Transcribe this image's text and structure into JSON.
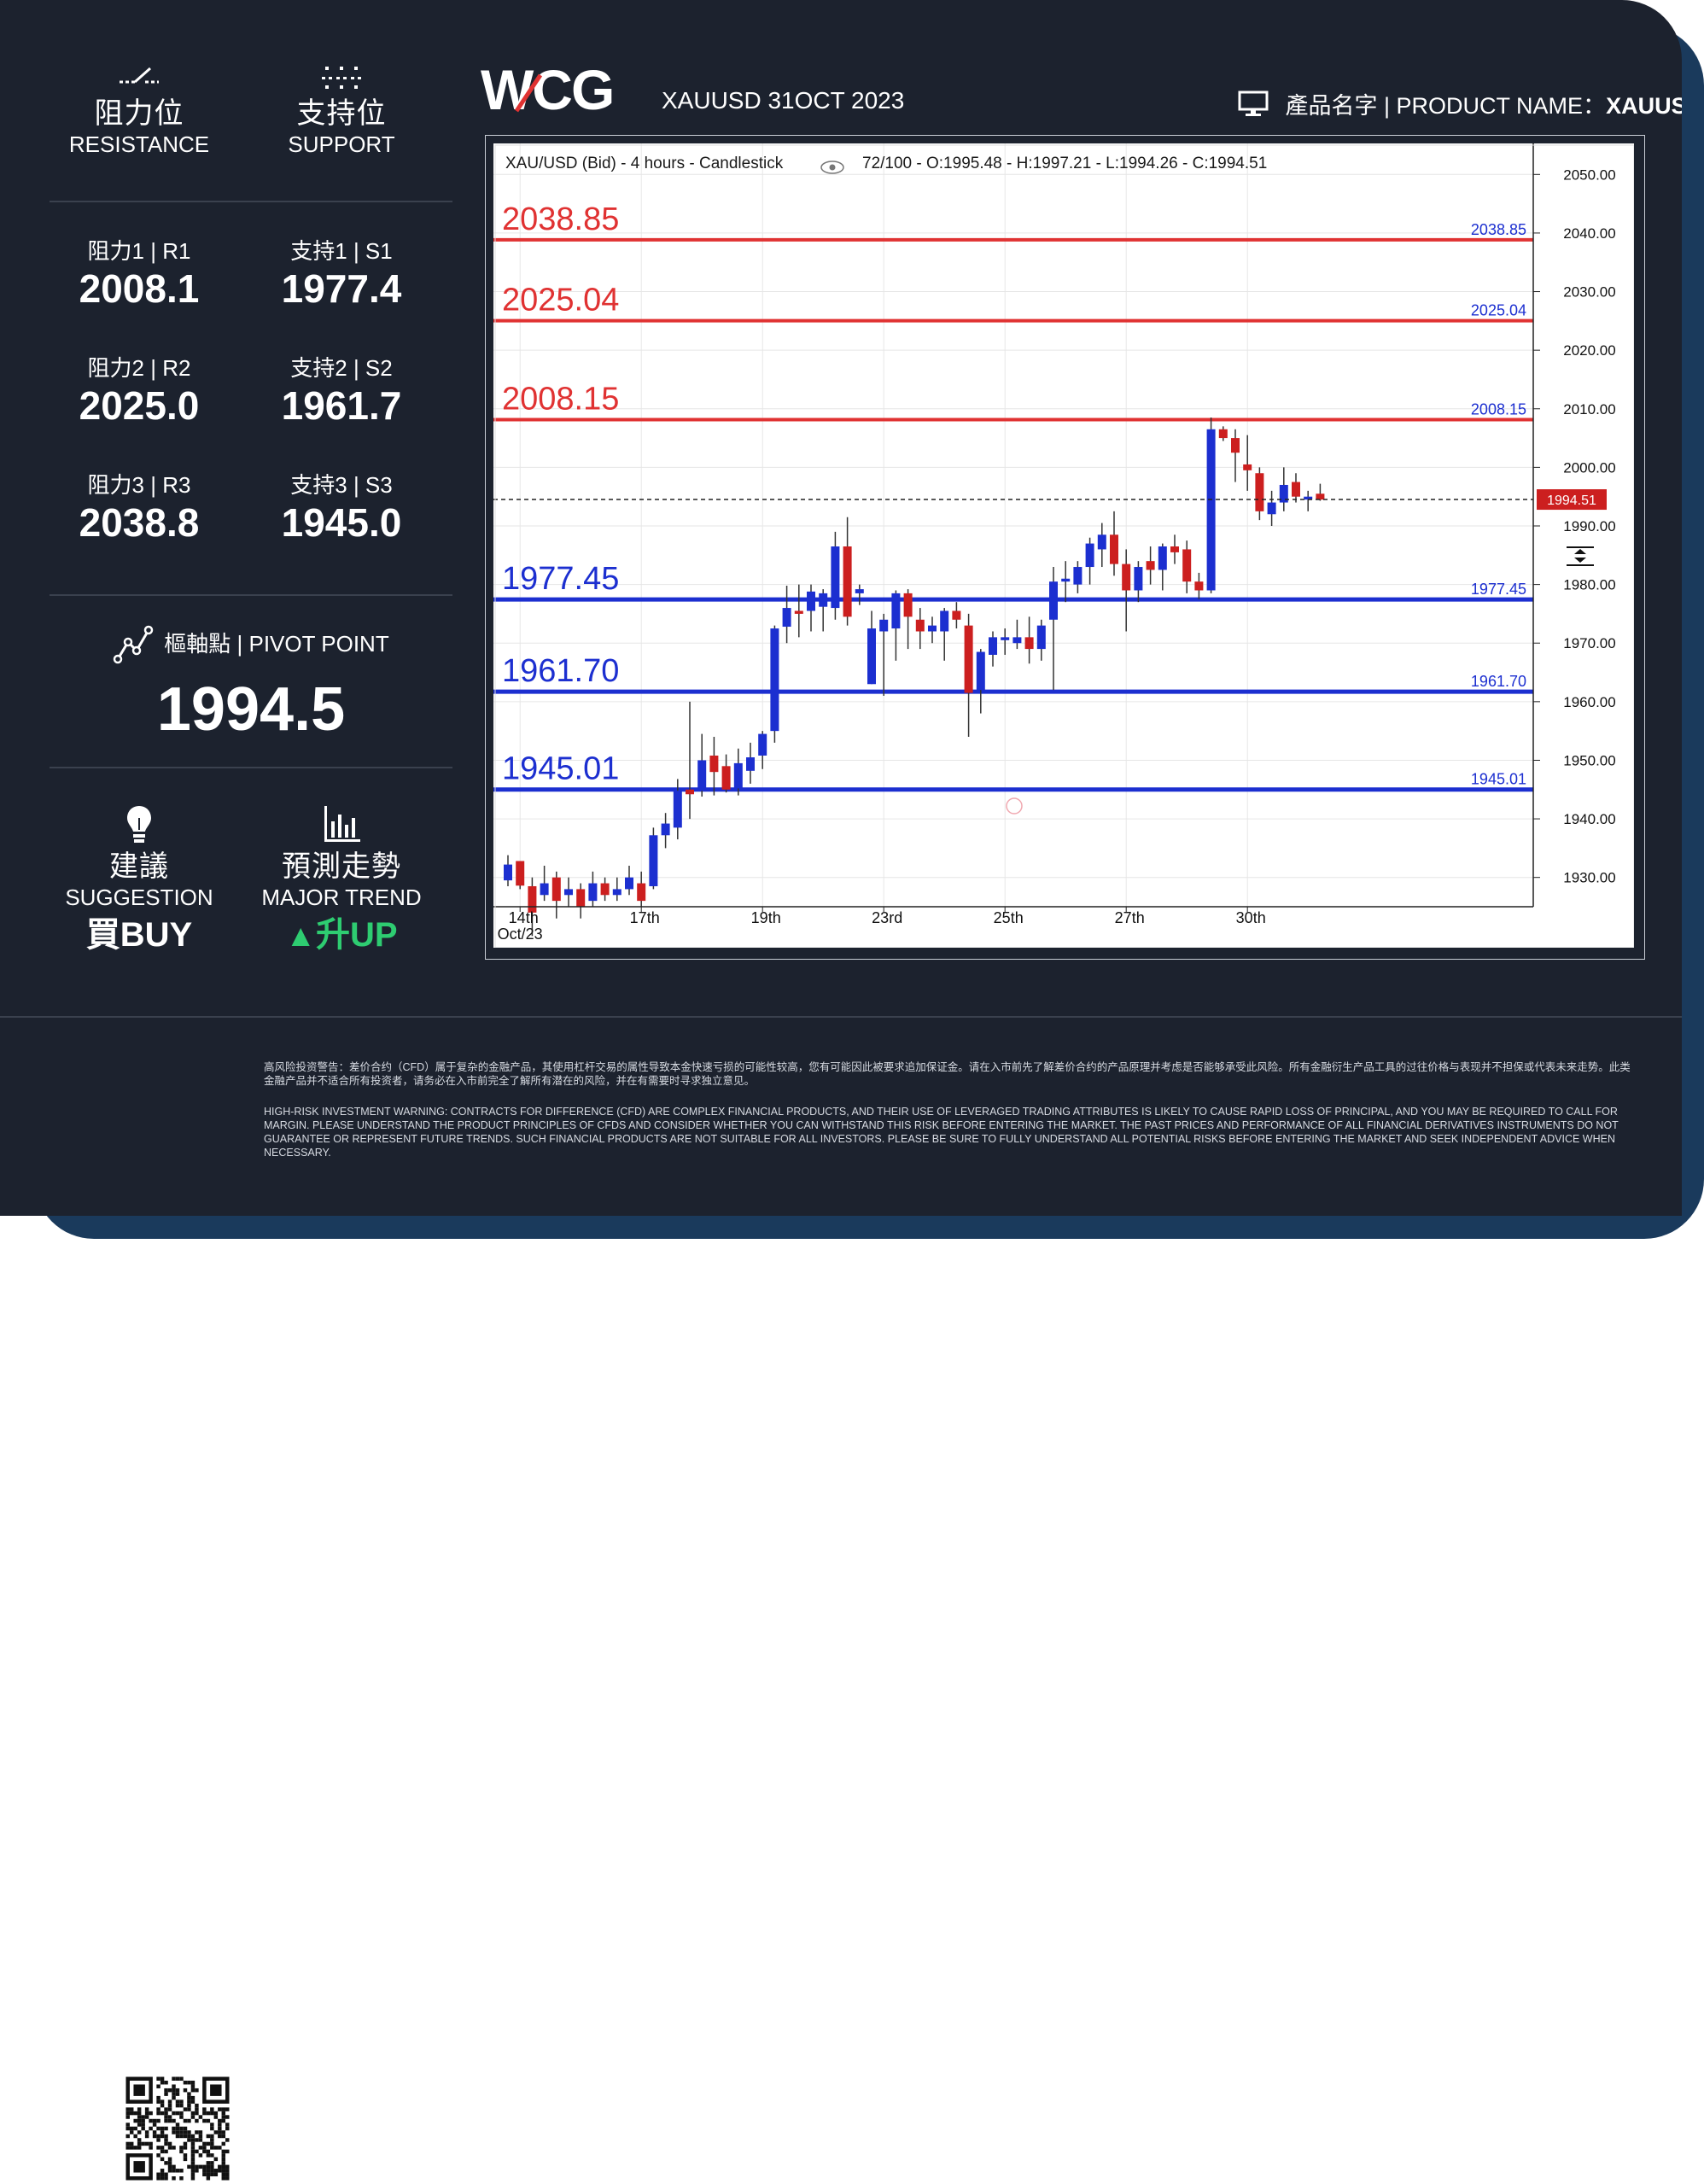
{
  "brand": {
    "logo_text": "WCG"
  },
  "header": {
    "title": "XAUUSD 31OCT 2023",
    "product_label": "產品名字 | PRODUCT NAME：",
    "product_value": "XAUUSD"
  },
  "resistance": {
    "cn": "阻力位",
    "en": "RESISTANCE"
  },
  "support": {
    "cn": "支持位",
    "en": "SUPPORT"
  },
  "levels": {
    "r1_label": "阻力1 | R1",
    "r1_value": "2008.1",
    "r2_label": "阻力2 | R2",
    "r2_value": "2025.0",
    "r3_label": "阻力3 | R3",
    "r3_value": "2038.8",
    "s1_label": "支持1 | S1",
    "s1_value": "1977.4",
    "s2_label": "支持2 | S2",
    "s2_value": "1961.7",
    "s3_label": "支持3 | S3",
    "s3_value": "1945.0"
  },
  "pivot": {
    "label": "樞軸點 | PIVOT POINT",
    "value": "1994.5"
  },
  "suggestion": {
    "cn": "建議",
    "en": "SUGGESTION",
    "value": "買BUY"
  },
  "trend": {
    "cn": "預測走勢",
    "en": "MAJOR TREND",
    "value": "升UP",
    "arrow": "▲"
  },
  "colors": {
    "background": "#1c222e",
    "accent_blue": "#13a8e0",
    "trend_green": "#2ecc71",
    "resistance_line": "#e03232",
    "support_line": "#1c2fd0",
    "candle_up": "#1c2fd0",
    "candle_down": "#cc1f1f"
  },
  "icons": {
    "resistance": "resistance-line-icon",
    "support": "support-dots-icon",
    "pivot": "pivot-chart-icon",
    "suggestion": "lightbulb-icon",
    "trend": "bar-chart-icon",
    "footer": "qr-code-icon"
  },
  "disclaimer": {
    "cn": "高风险投资警告：差价合约（CFD）属于复杂的金融产品，其使用杠杆交易的属性导致本金快速亏损的可能性较高，您有可能因此被要求追加保证金。请在入市前先了解差价合约的产品原理并考虑是否能够承受此风险。所有金融衍生产品工具的过往价格与表现并不担保或代表未来走势。此类金融产品并不适合所有投资者，请务必在入市前完全了解所有潜在的风险，并在有需要时寻求独立意见。",
    "en": "HIGH-RISK INVESTMENT WARNING: CONTRACTS FOR DIFFERENCE (CFD) ARE COMPLEX FINANCIAL PRODUCTS, AND THEIR USE OF LEVERAGED TRADING ATTRIBUTES IS LIKELY TO CAUSE RAPID LOSS OF PRINCIPAL, AND YOU MAY BE REQUIRED TO CALL FOR MARGIN. PLEASE UNDERSTAND THE PRODUCT PRINCIPLES OF CFDS AND CONSIDER WHETHER YOU CAN WITHSTAND THIS RISK BEFORE ENTERING THE MARKET. THE PAST PRICES AND PERFORMANCE OF ALL FINANCIAL DERIVATIVES INSTRUMENTS DO NOT GUARANTEE OR REPRESENT FUTURE TRENDS. SUCH FINANCIAL PRODUCTS ARE NOT SUITABLE FOR ALL INVESTORS. PLEASE BE SURE TO FULLY UNDERSTAND ALL POTENTIAL RISKS BEFORE ENTERING THE MARKET AND SEEK INDEPENDENT ADVICE WHEN NECESSARY."
  },
  "chart_data": {
    "type": "candlestick",
    "title": "XAU/USD (Bid) - 4 hours - Candlestick",
    "info": "72/100 - O:1995.48 - H:1997.21 - L:1994.26 - C:1994.51",
    "ylim": [
      1925,
      2055
    ],
    "y_ticks": [
      "1930.00",
      "1940.00",
      "1950.00",
      "1960.00",
      "1970.00",
      "1980.00",
      "1990.00",
      "2000.00",
      "2010.00",
      "2020.00",
      "2030.00",
      "2040.00",
      "2050.00"
    ],
    "x_ticks": [
      {
        "index": 1,
        "label": "14th",
        "sublabel": "Oct/23"
      },
      {
        "index": 11,
        "label": "17th",
        "sublabel": ""
      },
      {
        "index": 21,
        "label": "19th",
        "sublabel": ""
      },
      {
        "index": 31,
        "label": "23rd",
        "sublabel": ""
      },
      {
        "index": 41,
        "label": "25th",
        "sublabel": ""
      },
      {
        "index": 51,
        "label": "27th",
        "sublabel": ""
      },
      {
        "index": 61,
        "label": "30th",
        "sublabel": ""
      }
    ],
    "current_price": 1994.51,
    "current_label": "1994.51",
    "levels": [
      {
        "value": 2038.85,
        "label": "2038.85",
        "kind": "resistance"
      },
      {
        "value": 2025.04,
        "label": "2025.04",
        "kind": "resistance"
      },
      {
        "value": 2008.15,
        "label": "2008.15",
        "kind": "resistance"
      },
      {
        "value": 1977.45,
        "label": "1977.45",
        "kind": "support"
      },
      {
        "value": 1961.7,
        "label": "1961.70",
        "kind": "support"
      },
      {
        "value": 1945.01,
        "label": "1945.01",
        "kind": "support"
      }
    ],
    "candles": [
      [
        1929.5,
        1933.8,
        1928.5,
        1932.2
      ],
      [
        1932.8,
        1932.8,
        1928.0,
        1928.6
      ],
      [
        1928.5,
        1930.0,
        1920.0,
        1924.0
      ],
      [
        1927.0,
        1932.0,
        1926.0,
        1929.0
      ],
      [
        1930.0,
        1931.0,
        1923.0,
        1926.0
      ],
      [
        1927.0,
        1930.0,
        1925.0,
        1928.0
      ],
      [
        1928.0,
        1929.0,
        1923.0,
        1925.0
      ],
      [
        1926.0,
        1931.0,
        1925.0,
        1929.0
      ],
      [
        1929.0,
        1930.0,
        1926.0,
        1927.0
      ],
      [
        1927.0,
        1930.0,
        1926.0,
        1928.0
      ],
      [
        1928.0,
        1932.0,
        1927.0,
        1930.0
      ],
      [
        1929.0,
        1931.0,
        1925.0,
        1926.0
      ],
      [
        1928.5,
        1938.5,
        1928.0,
        1937.2
      ],
      [
        1937.2,
        1941.0,
        1935.0,
        1939.2
      ],
      [
        1938.5,
        1946.8,
        1936.5,
        1944.8
      ],
      [
        1945.0,
        1960.0,
        1940.0,
        1944.2
      ],
      [
        1944.8,
        1954.5,
        1943.8,
        1950.0
      ],
      [
        1950.8,
        1954.0,
        1944.0,
        1948.0
      ],
      [
        1949.0,
        1951.0,
        1944.5,
        1945.0
      ],
      [
        1945.2,
        1952.0,
        1944.0,
        1949.5
      ],
      [
        1948.2,
        1953.0,
        1946.0,
        1950.5
      ],
      [
        1950.8,
        1955.0,
        1948.5,
        1954.5
      ],
      [
        1955.0,
        1973.0,
        1953.0,
        1972.5
      ],
      [
        1972.8,
        1979.8,
        1970.0,
        1976.0
      ],
      [
        1975.5,
        1980.0,
        1971.0,
        1975.0
      ],
      [
        1975.5,
        1980.0,
        1972.0,
        1978.8
      ],
      [
        1976.2,
        1979.2,
        1972.0,
        1978.5
      ],
      [
        1976.0,
        1989.0,
        1974.0,
        1986.5
      ],
      [
        1986.5,
        1991.5,
        1973.0,
        1974.5
      ],
      [
        1978.5,
        1980.0,
        1976.5,
        1979.2
      ],
      [
        1963.0,
        1975.5,
        1963.0,
        1972.5
      ],
      [
        1972.0,
        1975.0,
        1961.0,
        1974.0
      ],
      [
        1972.5,
        1979.0,
        1967.0,
        1978.5
      ],
      [
        1978.5,
        1979.2,
        1969.0,
        1974.5
      ],
      [
        1974.0,
        1976.0,
        1969.0,
        1972.0
      ],
      [
        1972.0,
        1974.5,
        1970.0,
        1973.0
      ],
      [
        1972.0,
        1976.0,
        1967.0,
        1975.5
      ],
      [
        1975.5,
        1977.0,
        1972.5,
        1974.0
      ],
      [
        1973.0,
        1975.0,
        1954.0,
        1961.5
      ],
      [
        1962.0,
        1969.0,
        1958.0,
        1968.5
      ],
      [
        1968.0,
        1972.0,
        1966.0,
        1971.0
      ],
      [
        1970.5,
        1972.5,
        1968.0,
        1971.0
      ],
      [
        1970.0,
        1974.0,
        1969.0,
        1971.0
      ],
      [
        1971.0,
        1974.5,
        1966.5,
        1969.0
      ],
      [
        1969.0,
        1974.0,
        1967.0,
        1973.0
      ],
      [
        1974.0,
        1983.0,
        1962.0,
        1980.5
      ],
      [
        1980.5,
        1984.0,
        1977.0,
        1981.0
      ],
      [
        1980.0,
        1984.0,
        1978.5,
        1983.0
      ],
      [
        1983.0,
        1988.0,
        1980.0,
        1987.0
      ],
      [
        1986.0,
        1990.5,
        1983.0,
        1988.5
      ],
      [
        1988.5,
        1992.5,
        1981.5,
        1983.5
      ],
      [
        1983.5,
        1986.0,
        1972.0,
        1979.0
      ],
      [
        1979.0,
        1984.0,
        1977.0,
        1983.0
      ],
      [
        1984.0,
        1986.5,
        1980.0,
        1982.5
      ],
      [
        1982.5,
        1987.0,
        1979.0,
        1986.5
      ],
      [
        1986.5,
        1988.5,
        1983.5,
        1985.5
      ],
      [
        1986.0,
        1987.5,
        1978.5,
        1980.5
      ],
      [
        1980.5,
        1982.0,
        1977.5,
        1979.0
      ],
      [
        1979.0,
        2008.5,
        1978.5,
        2006.5
      ],
      [
        2006.5,
        2007.0,
        2004.5,
        2005.0
      ],
      [
        2005.0,
        2006.5,
        1997.5,
        2002.5
      ],
      [
        2000.5,
        2005.5,
        1996.0,
        1999.5
      ],
      [
        1999.0,
        2000.0,
        1991.0,
        1992.5
      ],
      [
        1992.0,
        1996.0,
        1990.0,
        1994.0
      ],
      [
        1994.0,
        2000.0,
        1992.5,
        1997.0
      ],
      [
        1997.5,
        1999.0,
        1994.0,
        1995.0
      ],
      [
        1994.5,
        1996.0,
        1992.5,
        1995.0
      ],
      [
        1995.5,
        1997.2,
        1994.3,
        1994.5
      ]
    ]
  }
}
